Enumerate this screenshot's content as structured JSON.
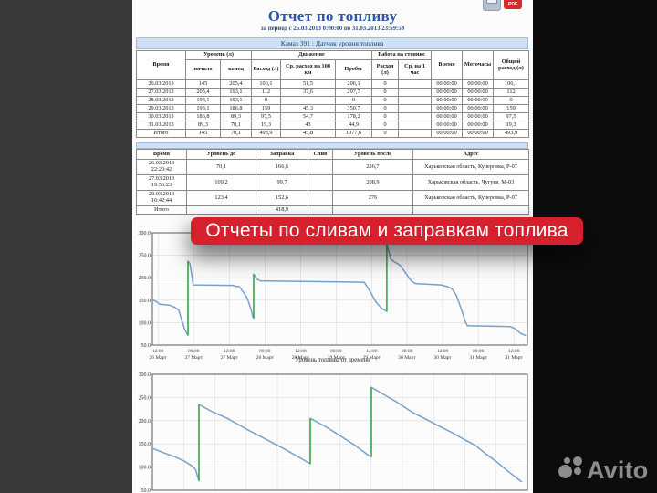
{
  "page": {
    "title": "Отчет по топливу",
    "subtitle": "за период с 25.03.2013 0:00:00 по 31.03.2013 23:59:59",
    "section_title": "Камаз 391 : Датчик уровня топлива",
    "toolbar": {
      "pdf_label": "PDF"
    }
  },
  "daily_table": {
    "header": {
      "col_time": "Время",
      "groups": [
        {
          "label": "Уровень (л)",
          "span": 2
        },
        {
          "label": "Движение",
          "span": 3
        },
        {
          "label": "Работа на стоянке",
          "span": 2
        }
      ],
      "sub": [
        "начало",
        "конец",
        "Расход (л)",
        "Ср. расход на 100 км",
        "Пробег",
        "Расход (л)",
        "Ср. на 1 час"
      ],
      "tail": [
        "Время",
        "Моточасы",
        "Общий расход (л)"
      ]
    },
    "rows": [
      [
        "26.03.2013",
        "145",
        "205,4",
        "106,1",
        "51,5",
        "206,1",
        "0",
        "",
        "00:00:00",
        "00:00:00",
        "106,1"
      ],
      [
        "27.03.2013",
        "205,4",
        "193,1",
        "112",
        "37,6",
        "297,7",
        "0",
        "",
        "00:00:00",
        "00:00:00",
        "112"
      ],
      [
        "28.03.2013",
        "193,1",
        "193,1",
        "0",
        "",
        "0",
        "0",
        "",
        "00:00:00",
        "00:00:00",
        "0"
      ],
      [
        "29.03.2013",
        "193,1",
        "186,8",
        "159",
        "45,3",
        "350,7",
        "0",
        "",
        "00:00:00",
        "00:00:00",
        "159"
      ],
      [
        "30.03.2013",
        "186,8",
        "89,3",
        "97,5",
        "54,7",
        "178,2",
        "0",
        "",
        "00:00:00",
        "00:00:00",
        "97,5"
      ],
      [
        "31.03.2013",
        "89,3",
        "70,1",
        "19,3",
        "43",
        "44,9",
        "0",
        "",
        "00:00:00",
        "00:00:00",
        "19,3"
      ],
      [
        "Итого",
        "145",
        "70,1",
        "493,9",
        "45,8",
        "1077,6",
        "0",
        "",
        "00:00:00",
        "00:00:00",
        "493,9"
      ]
    ]
  },
  "refuel_table": {
    "columns": [
      "Время",
      "Уровень до",
      "Заправка",
      "Слив",
      "Уровень после",
      "Адрес"
    ],
    "rows": [
      [
        "26.03.2013 22:20:42",
        "70,1",
        "166,6",
        "",
        "236,7",
        "Харьковская область, Кучеровка, Р-07"
      ],
      [
        "27.03.2013 19:56:23",
        "109,2",
        "99,7",
        "",
        "208,9",
        "Харьковская область, Чугуев, М-03"
      ],
      [
        "29.03.2013 16:42:44",
        "123,4",
        "152,6",
        "",
        "276",
        "Харьковская область, Кучеровка, Р-07"
      ],
      [
        "Итого",
        "",
        "418,9",
        "",
        "",
        ""
      ]
    ]
  },
  "overlay_banner": {
    "label": "Отчеты по сливам и заправкам топлива",
    "color": "#d7202e"
  },
  "watermark": {
    "label": "Avito"
  },
  "chart_data": [
    {
      "type": "line",
      "caption": "Уровень топлива от времени",
      "ylim": [
        50,
        300
      ],
      "yticks": [
        300,
        250,
        200,
        150,
        100,
        50
      ],
      "grid": true,
      "legend": "none",
      "line_color": "#78a0cc",
      "refuel_color": "#44b24e",
      "xticks": [
        {
          "x": 0.015,
          "time": "12:00",
          "date": "26 Март"
        },
        {
          "x": 0.11,
          "time": "00:00",
          "date": "27 Март"
        },
        {
          "x": 0.205,
          "time": "12:00",
          "date": "27 Март"
        },
        {
          "x": 0.3,
          "time": "00:00",
          "date": "28 Март"
        },
        {
          "x": 0.395,
          "time": "12:00",
          "date": "28 Март"
        },
        {
          "x": 0.49,
          "time": "00:00",
          "date": "29 Март"
        },
        {
          "x": 0.585,
          "time": "12:00",
          "date": "29 Март"
        },
        {
          "x": 0.679,
          "time": "00:00",
          "date": "30 Март"
        },
        {
          "x": 0.774,
          "time": "12:00",
          "date": "30 Март"
        },
        {
          "x": 0.869,
          "time": "00:00",
          "date": "31 Март"
        },
        {
          "x": 0.964,
          "time": "12:00",
          "date": "31 Март"
        }
      ],
      "series": [
        {
          "name": "Уровень топлива (л)",
          "points": [
            [
              0.0,
              151
            ],
            [
              0.01,
              147
            ],
            [
              0.02,
              141
            ],
            [
              0.045,
              139
            ],
            [
              0.06,
              134
            ],
            [
              0.07,
              128
            ],
            [
              0.076,
              112
            ],
            [
              0.086,
              86
            ],
            [
              0.093,
              74
            ],
            [
              0.095,
              72
            ],
            [
              0.095,
              237
            ],
            [
              0.1,
              232
            ],
            [
              0.109,
              184
            ],
            [
              0.215,
              183
            ],
            [
              0.222,
              181
            ],
            [
              0.232,
              180
            ],
            [
              0.252,
              156
            ],
            [
              0.263,
              130
            ],
            [
              0.268,
              112
            ],
            [
              0.27,
              110
            ],
            [
              0.27,
              208
            ],
            [
              0.28,
              196
            ],
            [
              0.288,
              193
            ],
            [
              0.565,
              190
            ],
            [
              0.58,
              170
            ],
            [
              0.596,
              146
            ],
            [
              0.611,
              132
            ],
            [
              0.621,
              127
            ],
            [
              0.625,
              125
            ],
            [
              0.625,
              276
            ],
            [
              0.636,
              241
            ],
            [
              0.646,
              235
            ],
            [
              0.66,
              228
            ],
            [
              0.675,
              211
            ],
            [
              0.69,
              193
            ],
            [
              0.701,
              187
            ],
            [
              0.77,
              184
            ],
            [
              0.787,
              180
            ],
            [
              0.799,
              175
            ],
            [
              0.811,
              160
            ],
            [
              0.823,
              131
            ],
            [
              0.835,
              101
            ],
            [
              0.84,
              93
            ],
            [
              0.955,
              91
            ],
            [
              0.968,
              86
            ],
            [
              0.982,
              76
            ],
            [
              0.996,
              71
            ]
          ]
        }
      ],
      "events": [
        {
          "x": 0.095,
          "from": 72,
          "to": 237,
          "kind": "заправка"
        },
        {
          "x": 0.27,
          "from": 110,
          "to": 208,
          "kind": "заправка"
        },
        {
          "x": 0.625,
          "from": 125,
          "to": 276,
          "kind": "заправка"
        }
      ]
    },
    {
      "type": "line",
      "caption": "",
      "ylim": [
        50,
        300
      ],
      "yticks": [
        300,
        250,
        200,
        150,
        100,
        50
      ],
      "grid": true,
      "grid_cols": 12,
      "legend": "none",
      "line_color": "#78a0cc",
      "refuel_color": "#44b24e",
      "xticks": [],
      "series": [
        {
          "name": "Уровень топлива (л)",
          "points": [
            [
              0.002,
              140
            ],
            [
              0.03,
              131
            ],
            [
              0.06,
              122
            ],
            [
              0.085,
              113
            ],
            [
              0.105,
              103
            ],
            [
              0.115,
              95
            ],
            [
              0.124,
              70
            ],
            [
              0.124,
              235
            ],
            [
              0.16,
              219
            ],
            [
              0.2,
              205
            ],
            [
              0.25,
              182
            ],
            [
              0.3,
              161
            ],
            [
              0.35,
              140
            ],
            [
              0.4,
              117
            ],
            [
              0.421,
              107
            ],
            [
              0.421,
              205
            ],
            [
              0.46,
              188
            ],
            [
              0.5,
              168
            ],
            [
              0.54,
              147
            ],
            [
              0.575,
              126
            ],
            [
              0.584,
              122
            ],
            [
              0.584,
              272
            ],
            [
              0.62,
              255
            ],
            [
              0.65,
              241
            ],
            [
              0.68,
              225
            ],
            [
              0.7,
              215
            ],
            [
              0.72,
              207
            ],
            [
              0.737,
              200
            ],
            [
              0.77,
              186
            ],
            [
              0.8,
              174
            ],
            [
              0.83,
              160
            ],
            [
              0.859,
              148
            ],
            [
              0.89,
              128
            ],
            [
              0.92,
              110
            ],
            [
              0.95,
              90
            ],
            [
              0.985,
              68
            ]
          ]
        }
      ],
      "events": [
        {
          "x": 0.124,
          "from": 70,
          "to": 235,
          "kind": "заправка"
        },
        {
          "x": 0.421,
          "from": 107,
          "to": 205,
          "kind": "заправка"
        },
        {
          "x": 0.584,
          "from": 122,
          "to": 272,
          "kind": "заправка"
        }
      ]
    }
  ]
}
